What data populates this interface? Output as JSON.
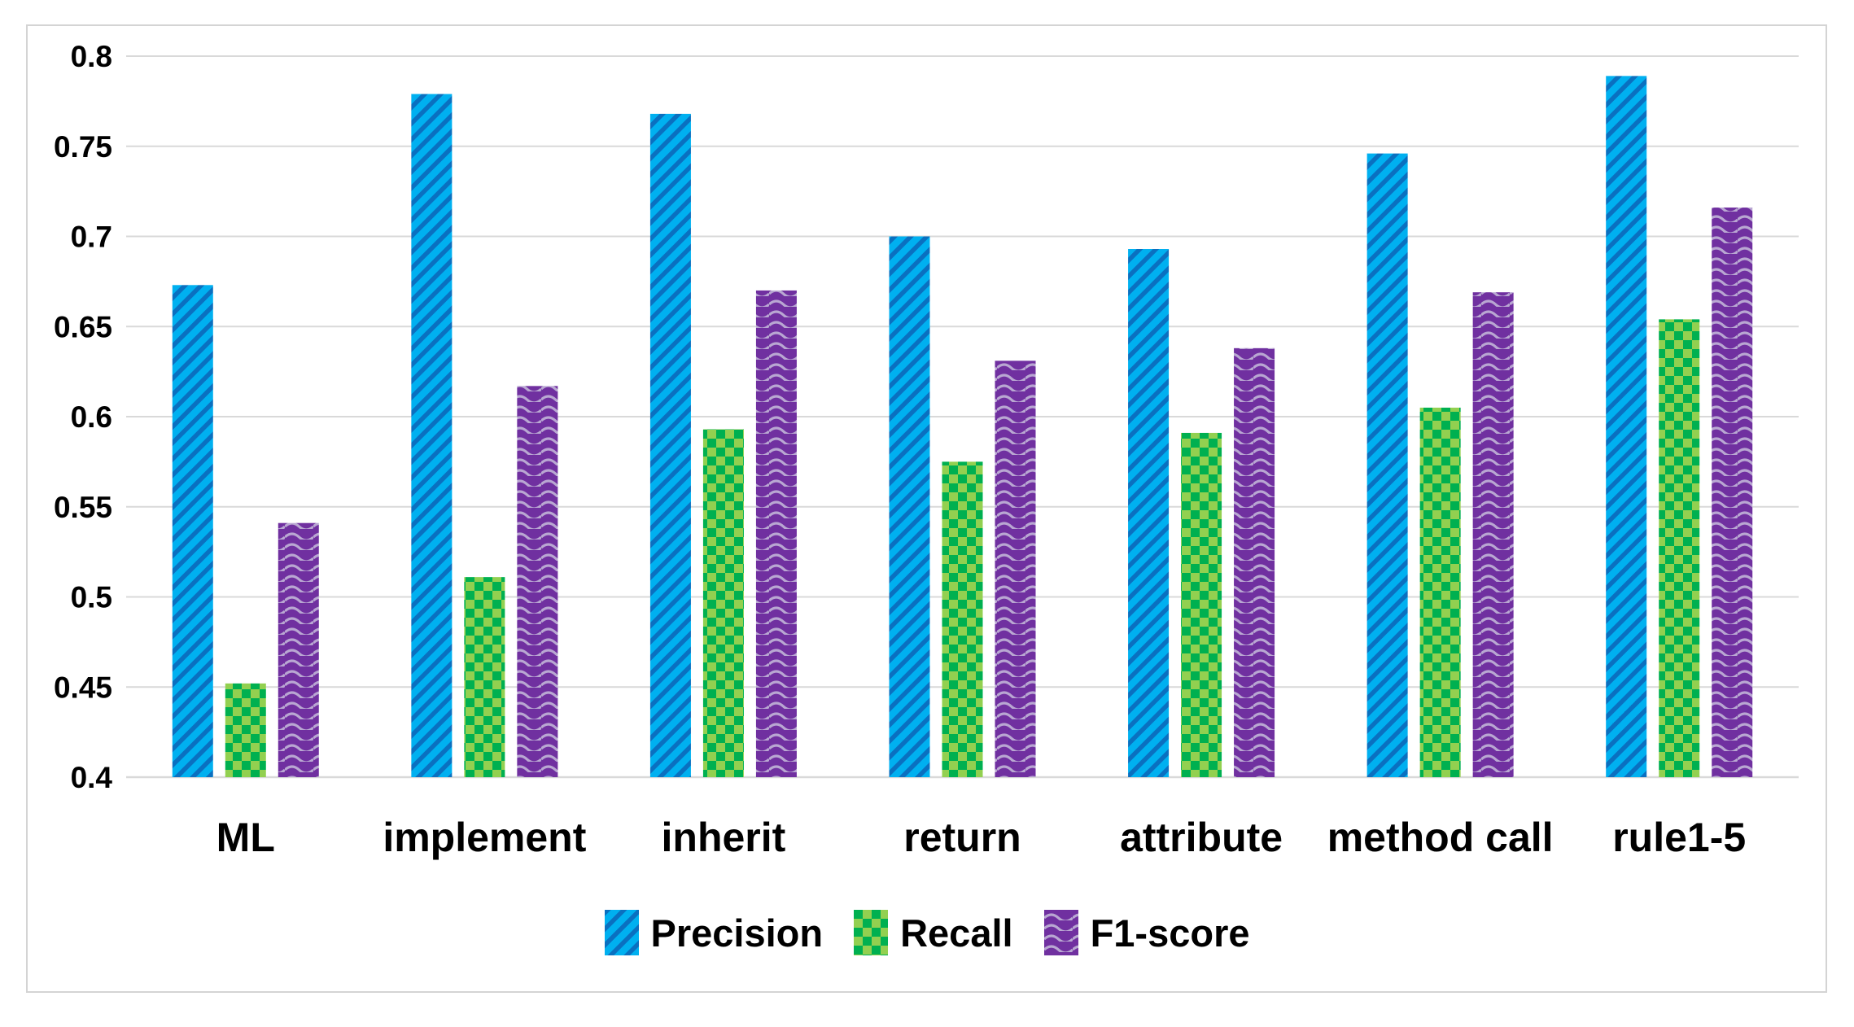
{
  "chart_data": {
    "type": "bar",
    "title": "",
    "xlabel": "",
    "ylabel": "",
    "categories": [
      "ML",
      "implement",
      "inherit",
      "return",
      "attribute",
      "method call",
      "rule1-5"
    ],
    "series": [
      {
        "name": "Precision",
        "pattern": "diagonal-stripes",
        "color_main": "#00b0f0",
        "color_accent": "#0a70c0",
        "values": [
          0.673,
          0.779,
          0.768,
          0.7,
          0.693,
          0.746,
          0.789
        ]
      },
      {
        "name": "Recall",
        "pattern": "checkerboard",
        "color_main": "#92d050",
        "color_accent": "#00b050",
        "values": [
          0.452,
          0.511,
          0.593,
          0.575,
          0.591,
          0.605,
          0.654
        ]
      },
      {
        "name": "F1-score",
        "pattern": "waves",
        "color_main": "#7030a0",
        "color_accent": "#b9a7d2",
        "values": [
          0.541,
          0.617,
          0.67,
          0.631,
          0.638,
          0.669,
          0.716
        ]
      }
    ],
    "ylim": [
      0.4,
      0.8
    ],
    "ytick_step": 0.05,
    "y_ticks": [
      "0.4",
      "0.45",
      "0.5",
      "0.55",
      "0.6",
      "0.65",
      "0.7",
      "0.75",
      "0.8"
    ],
    "grid": true,
    "legend_position": "bottom",
    "style": {
      "grid_color": "#d9d9d9",
      "border_color": "#d4d4d4",
      "background": "#ffffff",
      "text_color": "#000000"
    }
  }
}
